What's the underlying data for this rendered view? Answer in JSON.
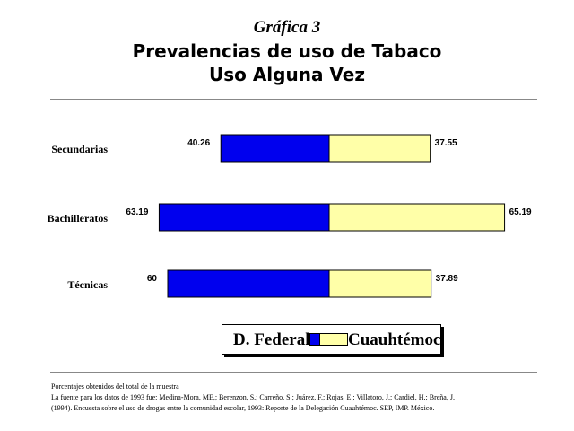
{
  "title": {
    "line1": "Gráfica 3",
    "line2": "Prevalencias de uso de Tabaco",
    "line3": "Uso Alguna Vez"
  },
  "colors": {
    "d_federal": "#0000ee",
    "cuauhtemoc": "#ffffa8",
    "rule": "#888888"
  },
  "chart_data": {
    "type": "bar",
    "orientation": "horizontal-diverging",
    "categories": [
      "Secundarias",
      "Bachilleratos",
      "Técnicas"
    ],
    "series": [
      {
        "name": "D. Federal",
        "values": [
          40.26,
          63.19,
          60
        ],
        "labels": [
          "40.26",
          "63.19",
          "60"
        ],
        "color": "#0000ee"
      },
      {
        "name": "Cuauhtémoc",
        "values": [
          37.55,
          65.19,
          37.89
        ],
        "labels": [
          "37.55",
          "65.19",
          "37.89"
        ],
        "color": "#ffffa8"
      }
    ],
    "legend": "bottom-center"
  },
  "legend": {
    "series1": "D. Federal",
    "series2": "Cuauhtémoc"
  },
  "footer": {
    "line1": "Porcentajes obtenidos del total de la muestra",
    "line2": "La fuente para los datos de 1993 fue: Medina-Mora, ME,; Berenzon, S.; Carreño, S.; Juárez, F.; Rojas, E.; Villatoro, J.; Cardiel, H.; Breña, J.",
    "line3": "(1994). Encuesta sobre el uso de drogas entre la comunidad escolar, 1993: Reporte de la Delegación Cuauhtémoc. SEP, IMP. México."
  }
}
